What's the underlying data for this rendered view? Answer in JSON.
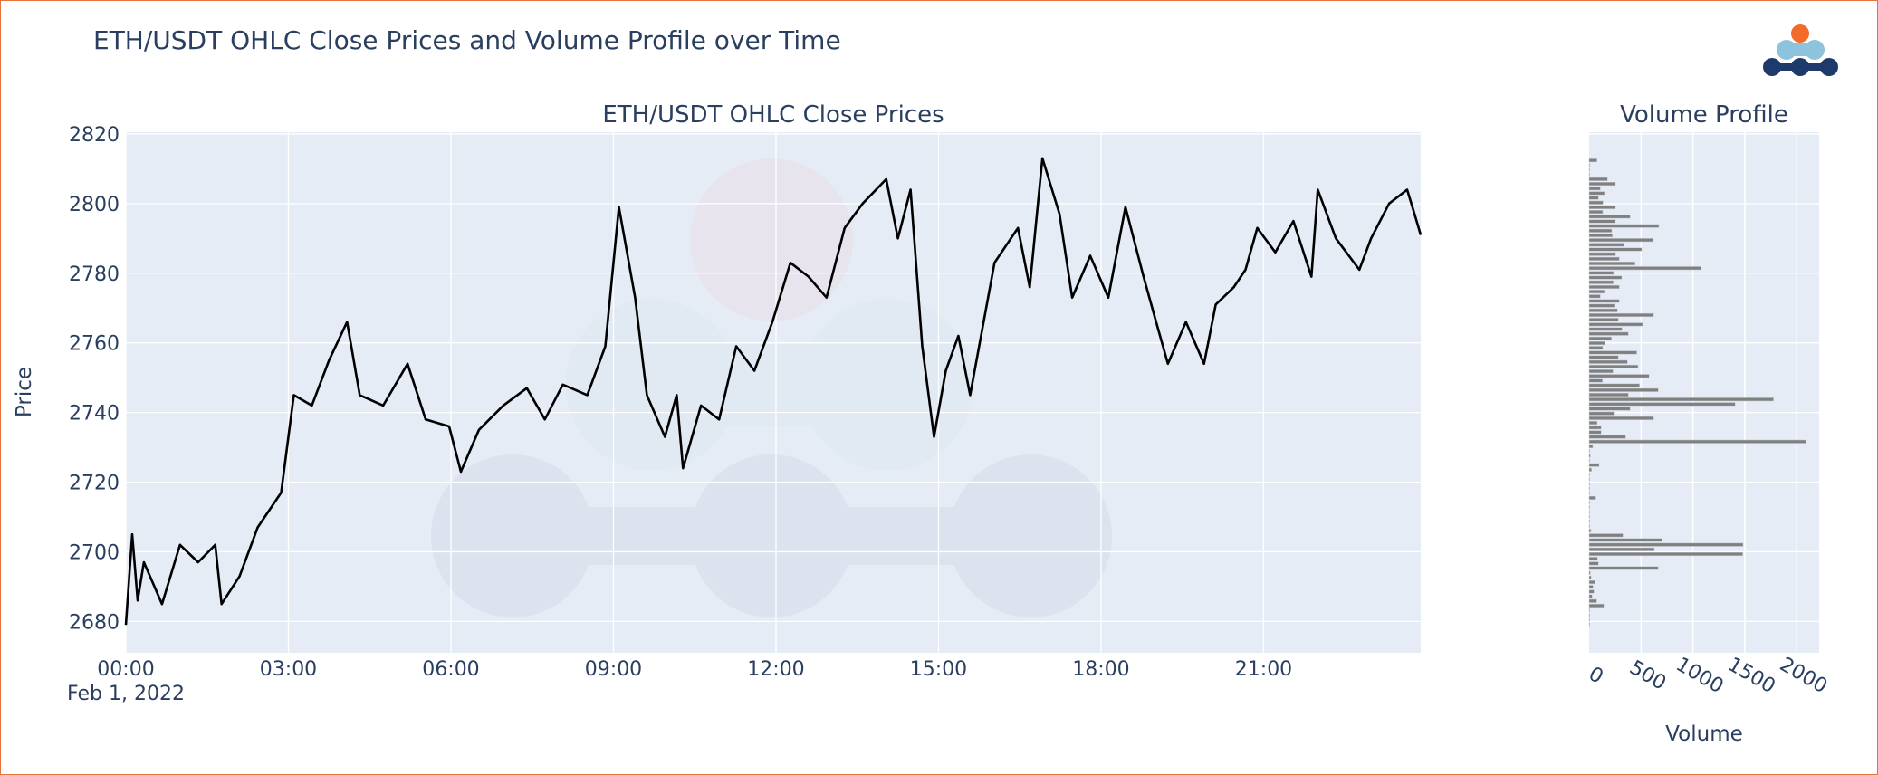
{
  "title": "ETH/USDT OHLC Close Prices and Volume Profile over Time",
  "colors": {
    "line": "#000000",
    "bars": "#808080",
    "plot_bg": "#e5ecf6",
    "grid": "#ffffff",
    "text": "#2a3f5f",
    "border": "#e8733a",
    "logo_orange": "#f26b2a",
    "logo_light_blue": "#8ec3de",
    "logo_navy": "#1e3a6a"
  },
  "logo": {
    "icon": "company-dots-logo"
  },
  "chart_data": [
    {
      "type": "line",
      "title": "ETH/USDT OHLC Close Prices",
      "xlabel": "",
      "ylabel": "Price",
      "date": "Feb 1, 2022",
      "x_tick_labels": [
        "00:00",
        "03:00",
        "06:00",
        "09:00",
        "12:00",
        "15:00",
        "18:00",
        "21:00"
      ],
      "x_tick_date_label": "Feb 1, 2022",
      "y_tick_labels": [
        "2680",
        "2700",
        "2720",
        "2740",
        "2760",
        "2780",
        "2800",
        "2820"
      ],
      "xlim": [
        "00:00",
        "23:54"
      ],
      "ylim": [
        2671,
        2820.5
      ],
      "grid": true,
      "series": [
        {
          "x": [
            "00:00",
            "00:07",
            "00:13",
            "00:20",
            "00:40",
            "01:00",
            "01:20",
            "01:39",
            "01:46",
            "02:06",
            "02:26",
            "02:52",
            "03:06",
            "03:26",
            "03:45",
            "04:05",
            "04:19",
            "04:45",
            "05:12",
            "05:32",
            "05:58",
            "06:11",
            "06:31",
            "06:58",
            "07:24",
            "07:44",
            "08:04",
            "08:31",
            "08:51",
            "09:06",
            "09:24",
            "09:37",
            "09:57",
            "10:10",
            "10:17",
            "10:37",
            "10:57",
            "11:16",
            "11:36",
            "11:56",
            "12:16",
            "12:36",
            "12:56",
            "13:16",
            "13:36",
            "14:02",
            "14:15",
            "14:29",
            "14:42",
            "14:55",
            "15:08",
            "15:22",
            "15:35",
            "16:02",
            "16:28",
            "16:41",
            "16:55",
            "17:14",
            "17:28",
            "17:48",
            "18:08",
            "18:27",
            "18:47",
            "19:01",
            "19:14",
            "19:34",
            "19:54",
            "20:07",
            "20:27",
            "20:40",
            "20:53",
            "21:13",
            "21:33",
            "21:53",
            "22:00",
            "22:20",
            "22:46",
            "22:59",
            "23:19",
            "23:39",
            "23:46",
            "23:54"
          ],
          "y": [
            2679,
            2705,
            2686,
            2697,
            2685,
            2702,
            2697,
            2702,
            2685,
            2693,
            2707,
            2717,
            2745,
            2742,
            2755,
            2766,
            2745,
            2742,
            2754,
            2738,
            2736,
            2723,
            2735,
            2742,
            2747,
            2738,
            2748,
            2745,
            2759,
            2799,
            2773,
            2745,
            2733,
            2745,
            2724,
            2742,
            2738,
            2759,
            2752,
            2766,
            2783,
            2779,
            2773,
            2793,
            2800,
            2807,
            2790,
            2804,
            2759,
            2733,
            2752,
            2762,
            2745,
            2783,
            2793,
            2776,
            2813,
            2797,
            2773,
            2785,
            2773,
            2799,
            2779,
            2766,
            2754,
            2766,
            2754,
            2771,
            2776,
            2781,
            2793,
            2786,
            2795,
            2779,
            2804,
            2790,
            2781,
            2790,
            2800,
            2804,
            2798,
            2791
          ]
        }
      ]
    },
    {
      "type": "bar",
      "orientation": "horizontal",
      "title": "Volume Profile",
      "xlabel": "Volume",
      "ylabel": "",
      "x_tick_labels": [
        "0",
        "500",
        "1000",
        "1500",
        "2000"
      ],
      "xlim": [
        0,
        2216
      ],
      "ylim": [
        2671,
        2820.5
      ],
      "grid": true,
      "price_bin_top": 2812.4,
      "price_bin_step": 1.346,
      "volumes_top_to_bottom": [
        75,
        0,
        2,
        5,
        177,
        253,
        108,
        148,
        90,
        134,
        253,
        131,
        395,
        253,
        672,
        218,
        224,
        613,
        334,
        506,
        256,
        291,
        442,
        1081,
        235,
        314,
        233,
        291,
        148,
        108,
        291,
        244,
        273,
        622,
        282,
        515,
        317,
        378,
        215,
        151,
        131,
        459,
        282,
        369,
        471,
        230,
        578,
        128,
        485,
        666,
        378,
        1776,
        1407,
        395,
        238,
        622,
        78,
        116,
        116,
        352,
        2087,
        35,
        2,
        12,
        2,
        96,
        23,
        2,
        2,
        2,
        2,
        2,
        64,
        2,
        2,
        2,
        2,
        2,
        2,
        17,
        326,
        706,
        1483,
        628,
        1480,
        81,
        90,
        666,
        12,
        20,
        58,
        38,
        47,
        29,
        73,
        142,
        2,
        2,
        2,
        2
      ]
    }
  ]
}
